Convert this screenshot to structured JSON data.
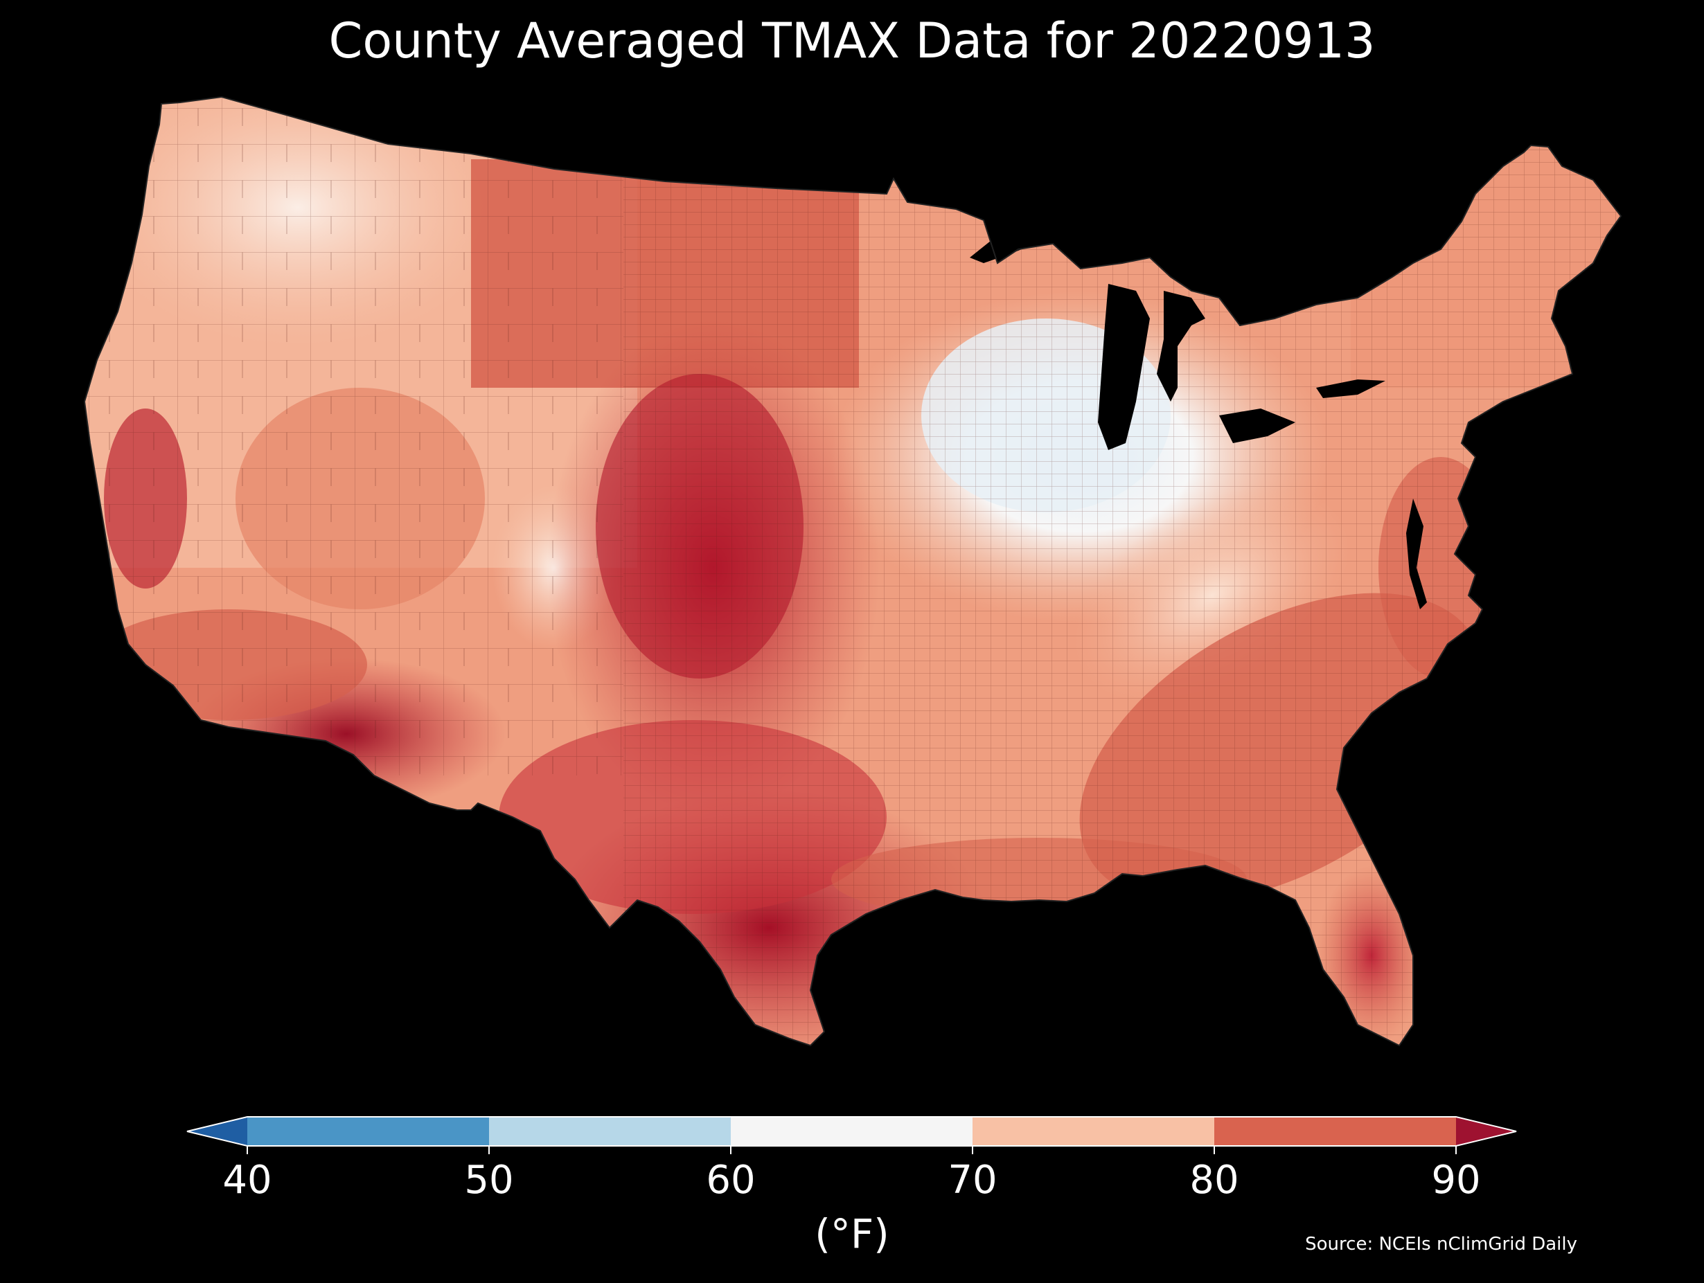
{
  "title": "County Averaged TMAX Data for 20220913",
  "source": "Source: NCEIs nClimGrid Daily",
  "colorbar": {
    "unit": "(°F)",
    "ticks": [
      "40",
      "50",
      "60",
      "70",
      "80",
      "90"
    ],
    "bins": [
      {
        "range": [
          40,
          50
        ],
        "color": "#4a95c6"
      },
      {
        "range": [
          50,
          60
        ],
        "color": "#b6d7e8"
      },
      {
        "range": [
          60,
          70
        ],
        "color": "#f5f5f5"
      },
      {
        "range": [
          70,
          80
        ],
        "color": "#f8c1a5"
      },
      {
        "range": [
          80,
          90
        ],
        "color": "#d9634f"
      }
    ],
    "under_color": "#1f5ea3",
    "over_color": "#9e1230",
    "extend": "both"
  },
  "colors": {
    "background": "#000000",
    "water": "#000000"
  }
}
